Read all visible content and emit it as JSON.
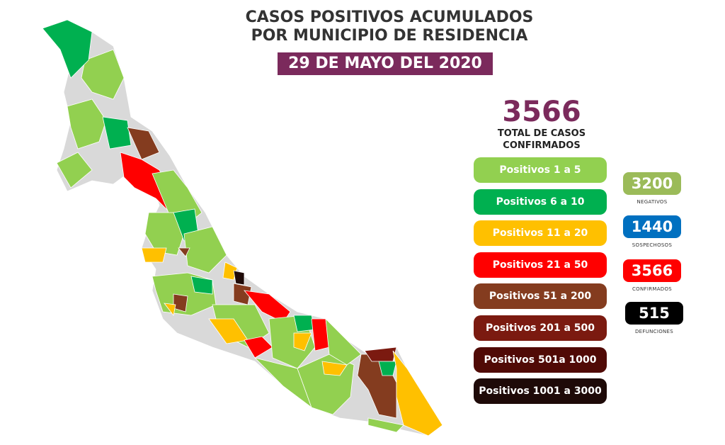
{
  "header": {
    "line1": "CASOS POSITIVOS ACUMULADOS",
    "line2": "POR MUNICIPIO DE RESIDENCIA",
    "date": "29 DE MAYO DEL 2020"
  },
  "total": {
    "value": "3566",
    "label_line1": "TOTAL DE CASOS",
    "label_line2": "CONFIRMADOS"
  },
  "legend": [
    {
      "label": "Positivos 1 a 5",
      "color": "#92d050"
    },
    {
      "label": "Positivos 6 a 10",
      "color": "#00b050"
    },
    {
      "label": "Positivos 11 a 20",
      "color": "#ffc000"
    },
    {
      "label": "Positivos 21 a 50",
      "color": "#ff0000"
    },
    {
      "label": "Positivos 51 a 200",
      "color": "#843c1f"
    },
    {
      "label": "Positivos 201 a 500",
      "color": "#7b1a10"
    },
    {
      "label": "Positivos 501a 1000",
      "color": "#500a06"
    },
    {
      "label": "Positivos 1001 a 3000",
      "color": "#1e0a08"
    }
  ],
  "stats": [
    {
      "value": "3200",
      "label": "NEGATIVOS",
      "color": "#9bbb59"
    },
    {
      "value": "1440",
      "label": "SOSPECHOSOS",
      "color": "#0070c0"
    },
    {
      "value": "3566",
      "label": "CONFIRMADOS",
      "color": "#ff0000"
    },
    {
      "value": "515",
      "label": "DEFUNCIONES",
      "color": "#000000"
    }
  ],
  "map": {
    "no_cases_color": "#d9d9d9",
    "border_color": "#ffffff",
    "accent": "#7b2a5c"
  }
}
